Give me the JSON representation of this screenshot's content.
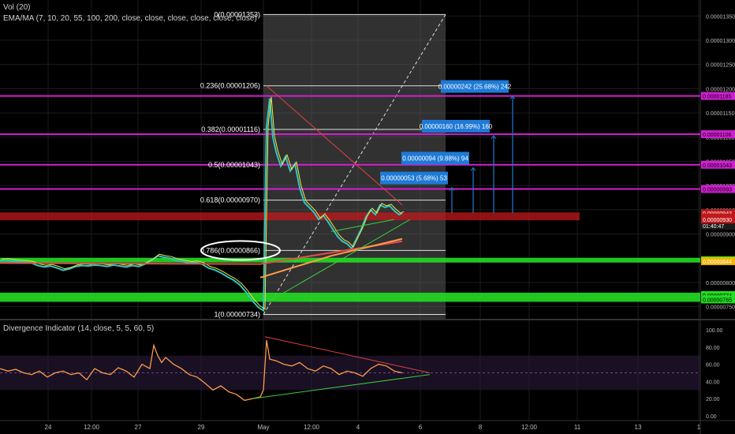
{
  "legend": {
    "volume": "Vol (20)",
    "moving_averages": "EMA/MA (7, 10, 20, 55, 100, 200, close, close, close, close, close, close)",
    "divergence": "Divergence Indicator (14, close, 5, 5, 60, 5)"
  },
  "colors": {
    "background": "#000000",
    "grid": "#1c1c1c",
    "fib_zone": "#5a5a5a",
    "magenta_line": "#d21fd2",
    "green_band": "#22dd22",
    "red_band": "#c0181c",
    "target_box": "#1e7ad6",
    "price_line": "#ff8a80",
    "divergence_line": "#ff9a4a"
  },
  "chart_data": [
    {
      "type": "line",
      "title": "",
      "xlabel": "",
      "ylabel": "",
      "ylim": [
        7.25e-06,
        1.37e-05
      ],
      "x_ticks": [
        "24",
        "12:00",
        "27",
        "29",
        "May",
        "12:00",
        "4",
        "6",
        "8",
        "12:00",
        "11",
        "13",
        "1"
      ],
      "y_ticks": [
        "0.00001350",
        "0.00001300",
        "0.00001250",
        "0.00001200",
        "0.00001150",
        "0.00001100",
        "0.00001050",
        "0.00001000",
        "0.00000950",
        "0.00000900",
        "0.00000850",
        "0.00000800",
        "0.00000750"
      ],
      "series": [
        {
          "values_x": [
            0,
            8,
            16,
            24,
            32,
            40,
            48,
            56,
            64,
            72,
            80,
            88,
            96,
            104,
            112,
            120,
            128,
            136,
            144,
            152,
            160,
            168,
            176,
            184,
            192,
            200,
            208,
            216,
            224,
            232,
            240,
            248,
            256,
            264,
            272,
            280,
            288,
            296,
            304,
            312,
            320,
            328,
            334,
            338,
            342,
            346,
            350,
            356,
            362,
            368,
            374,
            380,
            386,
            392,
            398,
            404,
            410,
            416,
            422,
            428,
            434,
            440,
            446,
            452,
            458,
            464,
            470,
            476,
            482,
            488,
            494,
            500,
            506,
            510
          ],
          "values": [
            8.45e-06,
            8.46e-06,
            8.44e-06,
            8.43e-06,
            8.42e-06,
            8.4e-06,
            8.35e-06,
            8.32e-06,
            8.34e-06,
            8.3e-06,
            8.25e-06,
            8.28e-06,
            8.33e-06,
            8.35e-06,
            8.34e-06,
            8.36e-06,
            8.35e-06,
            8.33e-06,
            8.36e-06,
            8.34e-06,
            8.32e-06,
            8.35e-06,
            8.33e-06,
            8.38e-06,
            8.45e-06,
            8.55e-06,
            8.52e-06,
            8.5e-06,
            8.45e-06,
            8.43e-06,
            8.4e-06,
            8.41e-06,
            8.38e-06,
            8.3e-06,
            8.26e-06,
            8.2e-06,
            8.12e-06,
            8.05e-06,
            7.95e-06,
            7.8e-06,
            7.62e-06,
            7.48e-06,
            7.42e-06,
            1.12e-05,
            1.18e-05,
            1.1e-05,
            1.07e-05,
            1.04e-05,
            1.06e-05,
            1.03e-05,
            1.045e-05,
            9.95e-06,
            9.65e-06,
            9.55e-06,
            9.45e-06,
            9.3e-06,
            9.38e-06,
            9.25e-06,
            9.1e-06,
            8.95e-06,
            8.85e-06,
            8.8e-06,
            8.7e-06,
            8.9e-06,
            9.1e-06,
            9.35e-06,
            9.5e-06,
            9.4e-06,
            9.6e-06,
            9.55e-06,
            9.58e-06,
            9.48e-06,
            9.4e-06,
            9.43e-06
          ]
        }
      ],
      "fib_levels": [
        {
          "label": "0(0.00001353)",
          "value": 1.353e-05
        },
        {
          "label": "0.236(0.00001206)",
          "value": 1.206e-05
        },
        {
          "label": "0.382(0.00001116)",
          "value": 1.116e-05
        },
        {
          "label": "0.5(0.00001043)",
          "value": 1.043e-05
        },
        {
          "label": "0.618(0.00000970)",
          "value": 9.7e-06
        },
        {
          "label": "0.786(0.00000866)",
          "value": 8.66e-06
        },
        {
          "label": "1(0.00000734)",
          "value": 7.34e-06
        }
      ],
      "horizontal_lines": [
        {
          "label": "0.00001185",
          "value": 1.185e-05,
          "color": "#d21fd2"
        },
        {
          "label": "0.00001106",
          "value": 1.106e-05,
          "color": "#d21fd2"
        },
        {
          "label": "0.00001043",
          "value": 1.043e-05,
          "color": "#d21fd2"
        },
        {
          "label": "0.00000993",
          "value": 9.93e-06,
          "color": "#d21fd2"
        },
        {
          "label": "0.00000846",
          "value": 8.46e-06,
          "color": "#22dd22"
        },
        {
          "label": "0.00000774",
          "value": 7.74e-06,
          "color": "#22dd22"
        },
        {
          "label": "0.00000765",
          "value": 7.65e-06,
          "color": "#22dd22"
        }
      ],
      "price_labels": [
        {
          "label": "0.00000943",
          "value": 9.43e-06,
          "color": "#c0181c"
        },
        {
          "label": "0.00000934",
          "value": 9.34e-06,
          "color": "#c0181c"
        },
        {
          "label": "01:40:47",
          "value": 9.17e-06,
          "color": "#1a1a1a"
        },
        {
          "label": "0.00000930",
          "value": 9.3e-06,
          "color": "#c0181c"
        },
        {
          "label": "0.00000844",
          "value": 8.44e-06,
          "color": "#f5b400"
        }
      ],
      "targets": [
        {
          "label": "0.00000053 (5.68%) 53",
          "from": 9.43e-06,
          "to": 9.96e-06
        },
        {
          "label": "0.00000094 (9.88%) 94",
          "from": 9.43e-06,
          "to": 1.037e-05
        },
        {
          "label": "0.00000160 (16.99%) 160",
          "from": 9.43e-06,
          "to": 1.103e-05
        },
        {
          "label": "0.00000242 (25.68%) 242",
          "from": 9.43e-06,
          "to": 1.185e-05
        }
      ]
    },
    {
      "type": "line",
      "title": "",
      "ylim": [
        0,
        100
      ],
      "y_ticks": [
        "100.00",
        "80.00",
        "60.00",
        "40.00",
        "20.00",
        "0.00"
      ],
      "series": [
        {
          "values_x": [
            0,
            10,
            20,
            30,
            40,
            50,
            60,
            70,
            80,
            90,
            100,
            110,
            120,
            130,
            140,
            150,
            160,
            170,
            180,
            190,
            195,
            200,
            205,
            210,
            220,
            230,
            240,
            250,
            260,
            270,
            280,
            290,
            300,
            310,
            320,
            330,
            334,
            338,
            342,
            350,
            360,
            370,
            380,
            390,
            400,
            410,
            420,
            430,
            440,
            450,
            460,
            470,
            480,
            490,
            500,
            510
          ],
          "values": [
            55,
            52,
            54,
            50,
            48,
            52,
            45,
            50,
            52,
            48,
            50,
            42,
            55,
            50,
            48,
            56,
            52,
            45,
            60,
            55,
            82,
            70,
            62,
            68,
            60,
            55,
            48,
            45,
            38,
            30,
            35,
            28,
            25,
            18,
            20,
            22,
            30,
            88,
            66,
            64,
            60,
            58,
            62,
            55,
            52,
            58,
            55,
            48,
            52,
            50,
            46,
            55,
            60,
            58,
            52,
            50
          ]
        }
      ]
    }
  ]
}
